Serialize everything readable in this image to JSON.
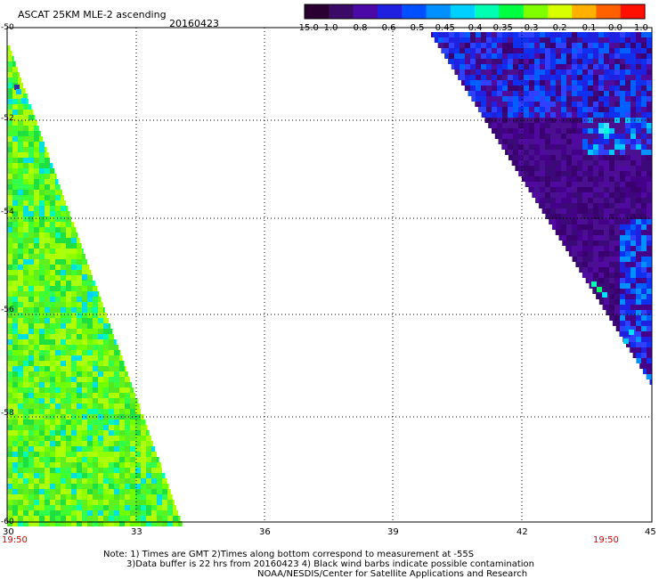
{
  "header": {
    "title": "ASCAT 25KM MLE-2 ascending",
    "date": "20160423"
  },
  "colorbar": {
    "labels": [
      "-15.0",
      "-1.0",
      "-0.8",
      "-0.6",
      "-0.5",
      "-0.45",
      "-0.4",
      "-0.35",
      "-0.3",
      "-0.2",
      "-0.1",
      "0.0",
      "1.0"
    ],
    "colors": [
      "#2a0033",
      "#3a0a66",
      "#4b0aa8",
      "#2020e0",
      "#0050ff",
      "#0090ff",
      "#00d0ff",
      "#00ffb0",
      "#00ff40",
      "#80ff00",
      "#d8ff00",
      "#ffb000",
      "#ff6000",
      "#ff1000"
    ]
  },
  "axes": {
    "y_ticks": [
      "-50",
      "-52",
      "-54",
      "-56",
      "-58",
      "-60"
    ],
    "x_ticks": [
      "30",
      "33",
      "36",
      "39",
      "42",
      "45"
    ],
    "time_left": "19:50",
    "time_right": "19:50"
  },
  "map_data": {
    "lon_range": [
      30,
      45
    ],
    "lat_range": [
      -60,
      -50
    ],
    "grid": "dotted, every 3 deg lon and 2 deg lat",
    "swaths": [
      {
        "side": "left",
        "dominant_values": "-0.35 to -0.2 (green/yellow-green), scattered -0.4 to -0.45 (cyan)"
      },
      {
        "side": "right",
        "dominant_values": "-1.0 to -0.8 (purple/violet), patches -0.6 to -0.45 (blue/cyan)"
      }
    ]
  },
  "footer": {
    "note1": "Note: 1) Times are GMT 2)Times along bottom correspond to measurement at -55S",
    "note2": "3)Data buffer is 22 hrs from 20160423 4) Black wind barbs indicate possible contamination",
    "credit": "NOAA/NESDIS/Center for Satellite Applications and Research"
  }
}
